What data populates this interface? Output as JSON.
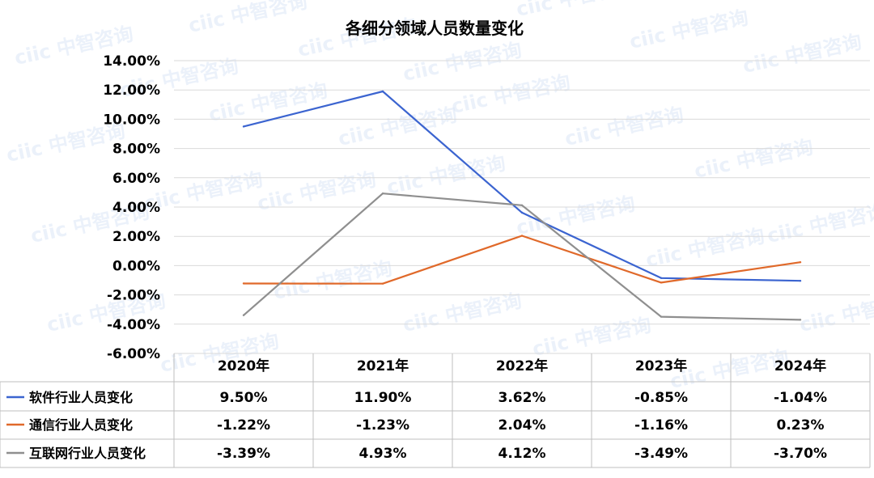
{
  "chart_data": {
    "type": "line",
    "title": "各细分领域人员数量变化",
    "categories": [
      "2020年",
      "2021年",
      "2022年",
      "2023年",
      "2024年"
    ],
    "ylim": [
      -6,
      14
    ],
    "yticks": [
      "14.00%",
      "12.00%",
      "10.00%",
      "8.00%",
      "6.00%",
      "4.00%",
      "2.00%",
      "0.00%",
      "-2.00%",
      "-4.00%",
      "-6.00%"
    ],
    "ytick_values": [
      14,
      12,
      10,
      8,
      6,
      4,
      2,
      0,
      -2,
      -4,
      -6
    ],
    "grid": true,
    "legend": "data-table",
    "series": [
      {
        "name": "软件行业人员变化",
        "color": "#3b64d0",
        "values": [
          9.5,
          11.9,
          3.62,
          -0.85,
          -1.04
        ],
        "labels": [
          "9.50%",
          "11.90%",
          "3.62%",
          "-0.85%",
          "-1.04%"
        ]
      },
      {
        "name": "通信行业人员变化",
        "color": "#e0692a",
        "values": [
          -1.22,
          -1.23,
          2.04,
          -1.16,
          0.23
        ],
        "labels": [
          "-1.22%",
          "-1.23%",
          "2.04%",
          "-1.16%",
          "0.23%"
        ]
      },
      {
        "name": "互联网行业人员变化",
        "color": "#8f8f8f",
        "values": [
          -3.39,
          4.93,
          4.12,
          -3.49,
          -3.7
        ],
        "labels": [
          "-3.39%",
          "4.93%",
          "4.12%",
          "-3.49%",
          "-3.70%"
        ]
      }
    ]
  },
  "watermark": {
    "text": "ciic 中智咨询"
  }
}
